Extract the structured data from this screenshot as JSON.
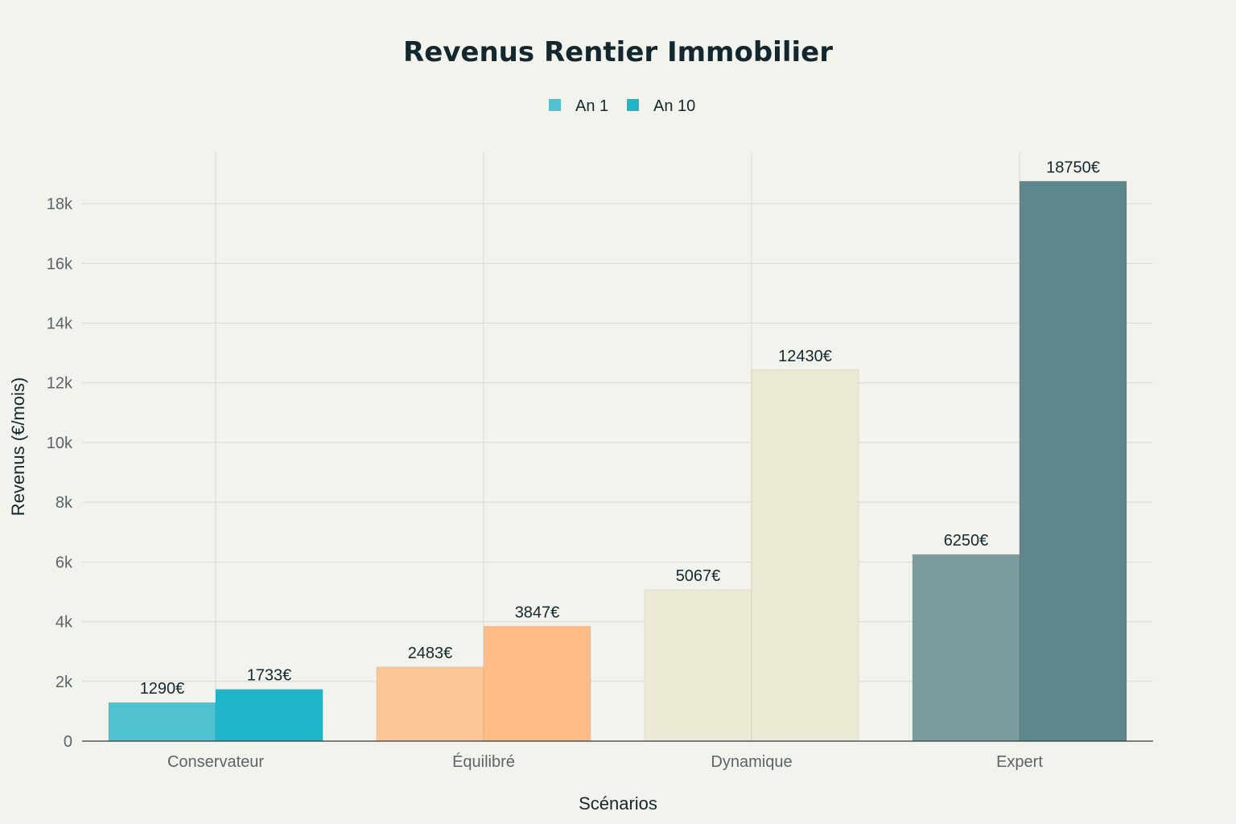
{
  "chart_data": {
    "type": "bar",
    "title": "Revenus Rentier Immobilier",
    "xlabel": "Scénarios",
    "ylabel": "Revenus (€/mois)",
    "ylim": [
      0,
      19700
    ],
    "yticks": [
      0,
      2000,
      4000,
      6000,
      8000,
      10000,
      12000,
      14000,
      16000,
      18000
    ],
    "ytick_labels": [
      "0",
      "2k",
      "4k",
      "6k",
      "8k",
      "10k",
      "12k",
      "14k",
      "16k",
      "18k"
    ],
    "grid": true,
    "legend_position": "top-center",
    "categories": [
      "Conservateur",
      "Équilibré",
      "Dynamique",
      "Expert"
    ],
    "series": [
      {
        "name": "An 1",
        "values": [
          1290,
          2483,
          5067,
          6250
        ],
        "labels": [
          "1290€",
          "2483€",
          "5067€",
          "6250€"
        ],
        "legend_color": "#4fc1d1",
        "colors": [
          "#4fc1d1",
          "#fbc796",
          "#ece9d4",
          "#7c9c9f"
        ]
      },
      {
        "name": "An 10",
        "values": [
          1733,
          3847,
          12430,
          18750
        ],
        "labels": [
          "1733€",
          "3847€",
          "12430€",
          "18750€"
        ],
        "legend_color": "#20b6c9",
        "colors": [
          "#20b6c9",
          "#ffbd85",
          "#ece9d4",
          "#5e878c"
        ]
      }
    ]
  }
}
